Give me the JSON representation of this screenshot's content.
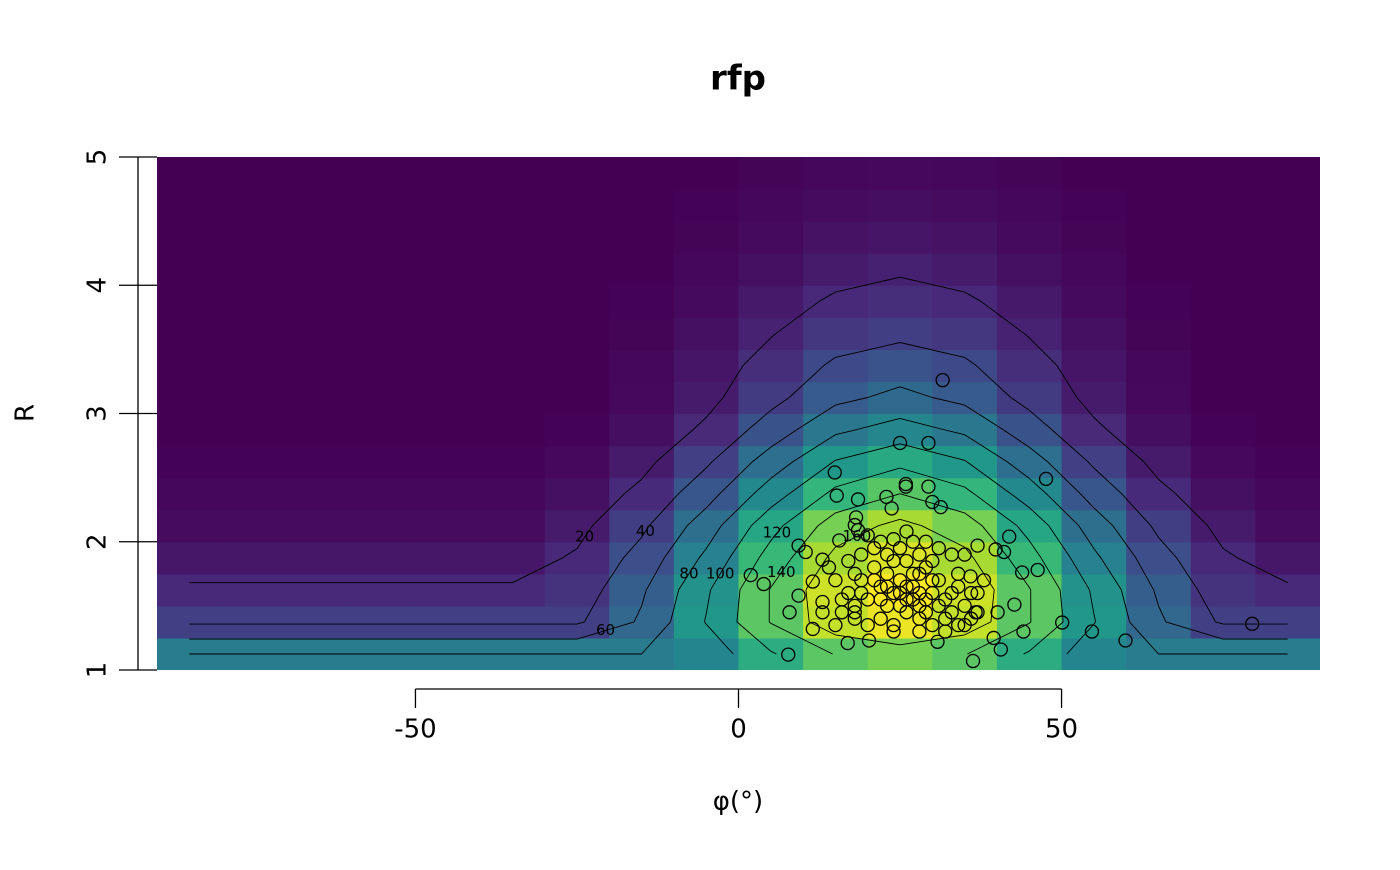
{
  "chart_data": {
    "type": "image-contour-scatter",
    "title": "rfp",
    "xlabel": "φ(°)",
    "ylabel": "R",
    "xlim": [
      -90,
      90
    ],
    "ylim": [
      1,
      5
    ],
    "xticks": [
      -50,
      0,
      50
    ],
    "yticks": [
      1,
      2,
      3,
      4,
      5
    ],
    "palette": [
      "#440154",
      "#482878",
      "#3e4989",
      "#31688e",
      "#26828e",
      "#1f9e89",
      "#35b779",
      "#6ece58",
      "#b5de2b",
      "#fde725"
    ],
    "x": [
      -85,
      -75,
      -65,
      -55,
      -45,
      -35,
      -25,
      -15,
      -5,
      5,
      15,
      25,
      35,
      45,
      55,
      65,
      75,
      85
    ],
    "y": [
      1.125,
      1.375,
      1.625,
      1.875,
      2.125,
      2.375,
      2.625,
      2.875,
      3.125,
      3.375,
      3.625,
      3.875,
      4.125,
      4.375,
      4.625,
      4.875
    ],
    "z": [
      [
        80,
        80,
        80,
        80,
        80,
        80,
        80,
        80,
        87,
        118,
        141,
        150,
        141,
        118,
        87,
        80,
        80,
        80
      ],
      [
        37,
        37,
        37,
        37,
        37,
        37,
        37,
        63,
        101,
        141,
        173,
        185,
        173,
        141,
        101,
        63,
        37,
        37
      ],
      [
        22,
        22,
        22,
        22,
        22,
        22,
        29,
        57,
        97,
        141,
        176,
        190,
        176,
        141,
        97,
        57,
        29,
        22
      ],
      [
        13,
        13,
        13,
        13,
        13,
        13,
        22,
        47,
        84,
        128,
        165,
        180,
        165,
        128,
        84,
        47,
        22,
        13
      ],
      [
        7,
        7,
        7,
        7,
        7,
        7,
        15,
        36,
        70,
        113,
        150,
        165,
        150,
        113,
        70,
        36,
        15,
        7
      ],
      [
        4,
        4,
        4,
        4,
        4,
        4,
        9,
        24,
        52,
        90,
        125,
        140,
        125,
        90,
        52,
        24,
        9,
        4
      ],
      [
        2,
        2,
        2,
        2,
        2,
        2,
        5,
        15,
        37,
        69,
        101,
        115,
        101,
        69,
        37,
        15,
        5,
        2
      ],
      [
        1,
        1,
        1,
        1,
        1,
        1,
        2,
        8,
        23,
        49,
        76,
        88,
        76,
        49,
        23,
        8,
        2,
        1
      ],
      [
        1,
        1,
        1,
        1,
        1,
        1,
        1,
        5,
        15,
        34,
        55,
        65,
        55,
        34,
        15,
        5,
        1,
        1
      ],
      [
        1,
        1,
        1,
        1,
        1,
        1,
        1,
        4,
        12,
        26,
        43,
        50,
        43,
        26,
        12,
        4,
        1,
        1
      ],
      [
        1,
        1,
        1,
        1,
        1,
        1,
        1,
        3,
        9,
        19,
        31,
        36,
        31,
        19,
        9,
        3,
        1,
        1
      ],
      [
        1,
        1,
        1,
        1,
        1,
        1,
        1,
        2,
        6,
        14,
        22,
        26,
        22,
        14,
        6,
        2,
        1,
        1
      ],
      [
        1,
        1,
        1,
        1,
        1,
        1,
        1,
        1,
        4,
        9,
        15,
        18,
        15,
        9,
        4,
        1,
        1,
        1
      ],
      [
        1,
        1,
        1,
        1,
        1,
        1,
        1,
        1,
        3,
        6,
        10,
        12,
        10,
        6,
        3,
        1,
        1,
        1
      ],
      [
        1,
        1,
        1,
        1,
        1,
        1,
        1,
        1,
        2,
        4,
        7,
        8,
        7,
        4,
        2,
        1,
        1,
        1
      ],
      [
        1,
        1,
        1,
        1,
        1,
        1,
        1,
        1,
        1,
        3,
        4,
        5,
        4,
        3,
        1,
        1,
        1,
        1
      ]
    ],
    "contour_levels": [
      20,
      40,
      60,
      80,
      100,
      120,
      140,
      160
    ],
    "points": {
      "x": [
        31.6,
        25.0,
        29.4,
        47.6,
        14.9,
        15.2,
        25.9,
        25.9,
        29.4,
        30.0,
        31.3,
        18.5,
        22.9,
        23.7,
        1.9,
        3.9,
        9.3,
        10.4,
        9.3,
        7.9,
        7.7,
        11.5,
        79.5,
        59.9,
        54.7,
        50.1,
        46.3,
        43.9,
        41.9,
        41.1,
        39.8,
        42.7,
        44.1,
        40.1,
        39.5,
        40.6,
        36.3,
        36.7,
        35.9,
        37.0,
        20.2,
        16.9,
        18.0,
        30.8,
        13.0,
        11.5,
        13.0,
        15.6,
        18.0,
        18.2,
        18.5,
        17,
        18,
        19,
        20,
        21,
        22,
        23,
        24,
        25,
        26,
        27,
        28,
        29,
        30,
        31,
        32,
        33,
        34,
        35,
        36,
        22,
        24,
        26,
        28,
        30,
        32,
        34,
        20,
        18,
        16,
        17,
        19,
        21,
        23,
        25,
        27,
        29,
        31,
        33,
        26,
        24,
        28,
        30,
        22,
        26,
        28,
        23,
        25,
        27,
        29,
        31,
        33,
        35,
        37,
        38,
        36,
        34,
        21,
        19,
        18,
        16,
        15,
        14,
        13,
        15,
        24,
        28,
        32,
        26,
        24,
        30,
        25,
        27,
        23,
        29,
        35,
        37,
        20,
        22,
        28
      ],
      "y": [
        3.26,
        2.77,
        2.77,
        2.49,
        2.54,
        2.36,
        2.45,
        2.43,
        2.43,
        2.31,
        2.27,
        2.33,
        2.35,
        2.26,
        1.74,
        1.67,
        1.97,
        1.92,
        1.58,
        1.45,
        1.12,
        1.32,
        1.36,
        1.23,
        1.3,
        1.37,
        1.78,
        1.76,
        2.04,
        1.92,
        1.94,
        1.51,
        1.3,
        1.45,
        1.25,
        1.16,
        1.07,
        1.45,
        1.73,
        1.97,
        1.23,
        1.21,
        1.45,
        1.22,
        1.53,
        1.69,
        1.86,
        2.01,
        2.13,
        2.19,
        2.09,
        1.6,
        1.5,
        1.7,
        1.55,
        1.8,
        1.65,
        1.75,
        1.6,
        1.7,
        1.55,
        1.65,
        1.5,
        1.8,
        1.6,
        1.7,
        1.55,
        1.45,
        1.65,
        1.9,
        1.6,
        1.4,
        1.35,
        1.45,
        1.4,
        1.35,
        1.4,
        1.35,
        1.35,
        1.4,
        1.45,
        1.85,
        1.9,
        1.95,
        1.9,
        1.95,
        2.0,
        2.0,
        1.95,
        1.9,
        1.85,
        1.85,
        1.75,
        1.85,
        1.55,
        1.65,
        1.6,
        1.5,
        1.5,
        1.55,
        1.45,
        1.5,
        1.6,
        1.5,
        1.6,
        1.7,
        1.4,
        1.75,
        1.7,
        1.6,
        1.75,
        1.55,
        1.7,
        1.8,
        1.45,
        1.35,
        1.3,
        1.3,
        1.3,
        2.08,
        2.02,
        1.7,
        1.6,
        1.75,
        1.65,
        1.55,
        1.35,
        1.45,
        2.05,
        2.0,
        1.9
      ]
    }
  }
}
